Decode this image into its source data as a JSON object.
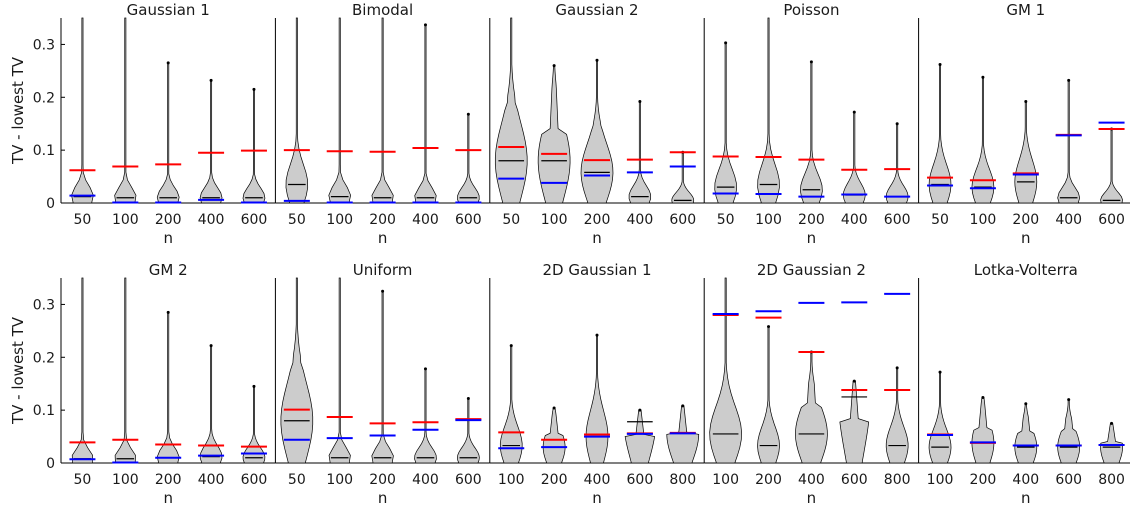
{
  "ylabel": "TV - lowest TV",
  "yticks": [
    0,
    0.1,
    0.2,
    0.3
  ],
  "ylim": [
    0,
    0.35
  ],
  "colors": {
    "red": "#ff0000",
    "blue": "#0000ff",
    "violin": "#cccccc",
    "outline": "#000000"
  },
  "chart_data": [
    {
      "type": "violin",
      "title": "Gaussian 1",
      "xlabel": "n",
      "categories": [
        "50",
        "100",
        "200",
        "400",
        "600"
      ],
      "series": [
        {
          "name": "",
          "values": [
            0.062,
            0.069,
            0.073,
            0.095,
            0.099
          ]
        },
        {
          "name": "",
          "values": [
            0.014,
            0.001,
            0.001,
            0.006,
            0.001
          ]
        }
      ],
      "medians": [
        0.012,
        0.01,
        0.01,
        0.01,
        0.01
      ],
      "tail_max": [
        0.35,
        0.35,
        0.265,
        0.232,
        0.215
      ]
    },
    {
      "type": "violin",
      "title": "Bimodal",
      "xlabel": "n",
      "categories": [
        "50",
        "100",
        "200",
        "400",
        "600"
      ],
      "series": [
        {
          "name": "",
          "values": [
            0.1,
            0.098,
            0.097,
            0.104,
            0.1
          ]
        },
        {
          "name": "",
          "values": [
            0.004,
            0.001,
            0.001,
            0.001,
            0.001
          ]
        }
      ],
      "medians": [
        0.035,
        0.012,
        0.01,
        0.01,
        0.01
      ],
      "tail_max": [
        0.35,
        0.35,
        0.35,
        0.337,
        0.168
      ]
    },
    {
      "type": "violin",
      "title": "Gaussian 2",
      "xlabel": "n",
      "categories": [
        "50",
        "100",
        "200",
        "400",
        "600"
      ],
      "series": [
        {
          "name": "",
          "values": [
            0.106,
            0.093,
            0.081,
            0.082,
            0.096
          ]
        },
        {
          "name": "",
          "values": [
            0.046,
            0.038,
            0.052,
            0.058,
            0.069
          ]
        }
      ],
      "medians": [
        0.08,
        0.08,
        0.058,
        0.012,
        0.005
      ],
      "tail_max": [
        0.35,
        0.26,
        0.27,
        0.192,
        0.096
      ]
    },
    {
      "type": "violin",
      "title": "Poisson",
      "xlabel": "n",
      "categories": [
        "50",
        "100",
        "200",
        "400",
        "600"
      ],
      "series": [
        {
          "name": "",
          "values": [
            0.088,
            0.087,
            0.082,
            0.063,
            0.064
          ]
        },
        {
          "name": "",
          "values": [
            0.018,
            0.017,
            0.012,
            0.016,
            0.012
          ]
        }
      ],
      "medians": [
        0.03,
        0.035,
        0.025,
        0.015,
        0.012
      ],
      "tail_max": [
        0.303,
        0.35,
        0.267,
        0.172,
        0.15
      ]
    },
    {
      "type": "violin",
      "title": "GM 1",
      "xlabel": "n",
      "categories": [
        "50",
        "100",
        "200",
        "400",
        "600"
      ],
      "series": [
        {
          "name": "",
          "values": [
            0.048,
            0.043,
            0.056,
            0.129,
            0.14
          ]
        },
        {
          "name": "",
          "values": [
            0.033,
            0.028,
            0.054,
            0.128,
            0.152
          ]
        }
      ],
      "medians": [
        0.035,
        0.03,
        0.04,
        0.01,
        0.005
      ],
      "tail_max": [
        0.262,
        0.238,
        0.192,
        0.232,
        0.14
      ]
    },
    {
      "type": "violin",
      "title": "GM 2",
      "xlabel": "n",
      "categories": [
        "50",
        "100",
        "200",
        "400",
        "600"
      ],
      "series": [
        {
          "name": "",
          "values": [
            0.039,
            0.044,
            0.035,
            0.033,
            0.031
          ]
        },
        {
          "name": "",
          "values": [
            0.007,
            0.001,
            0.01,
            0.014,
            0.018
          ]
        }
      ],
      "medians": [
        0.008,
        0.008,
        0.01,
        0.012,
        0.01
      ],
      "tail_max": [
        0.35,
        0.35,
        0.285,
        0.222,
        0.145
      ]
    },
    {
      "type": "violin",
      "title": "Uniform",
      "xlabel": "n",
      "categories": [
        "50",
        "100",
        "200",
        "400",
        "600"
      ],
      "series": [
        {
          "name": "",
          "values": [
            0.101,
            0.087,
            0.075,
            0.077,
            0.083
          ]
        },
        {
          "name": "",
          "values": [
            0.044,
            0.047,
            0.052,
            0.063,
            0.081
          ]
        }
      ],
      "medians": [
        0.08,
        0.01,
        0.01,
        0.01,
        0.01
      ],
      "tail_max": [
        0.35,
        0.35,
        0.325,
        0.178,
        0.122
      ]
    },
    {
      "type": "violin",
      "title": "2D Gaussian 1",
      "xlabel": "n",
      "categories": [
        "100",
        "200",
        "400",
        "600",
        "800"
      ],
      "series": [
        {
          "name": "",
          "values": [
            0.058,
            0.044,
            0.054,
            0.056,
            0.057
          ]
        },
        {
          "name": "",
          "values": [
            0.028,
            0.03,
            0.05,
            0.055,
            0.056
          ]
        }
      ],
      "medians": [
        0.033,
        0.03,
        0.05,
        0.078,
        0.056
      ],
      "tail_max": [
        0.222,
        0.104,
        0.242,
        0.1,
        0.108
      ]
    },
    {
      "type": "violin",
      "title": "2D Gaussian 2",
      "xlabel": "n",
      "categories": [
        "100",
        "200",
        "400",
        "600",
        "800"
      ],
      "series": [
        {
          "name": "",
          "values": [
            0.28,
            0.275,
            0.21,
            0.138,
            0.138
          ]
        },
        {
          "name": "",
          "values": [
            0.282,
            0.287,
            0.303,
            0.304,
            0.32
          ]
        }
      ],
      "medians": [
        0.055,
        0.033,
        0.055,
        0.125,
        0.033
      ],
      "tail_max": [
        0.35,
        0.258,
        0.21,
        0.155,
        0.18
      ]
    },
    {
      "type": "violin",
      "title": "Lotka-Volterra",
      "xlabel": "n",
      "categories": [
        "100",
        "200",
        "400",
        "600",
        "800"
      ],
      "series": [
        {
          "name": "",
          "values": [
            0.054,
            0.038,
            0.033,
            0.033,
            0.034
          ]
        },
        {
          "name": "",
          "values": [
            0.053,
            0.039,
            0.033,
            0.033,
            0.034
          ]
        }
      ],
      "medians": [
        0.03,
        0.038,
        0.03,
        0.03,
        0.03
      ],
      "tail_max": [
        0.172,
        0.124,
        0.112,
        0.12,
        0.075
      ]
    }
  ]
}
